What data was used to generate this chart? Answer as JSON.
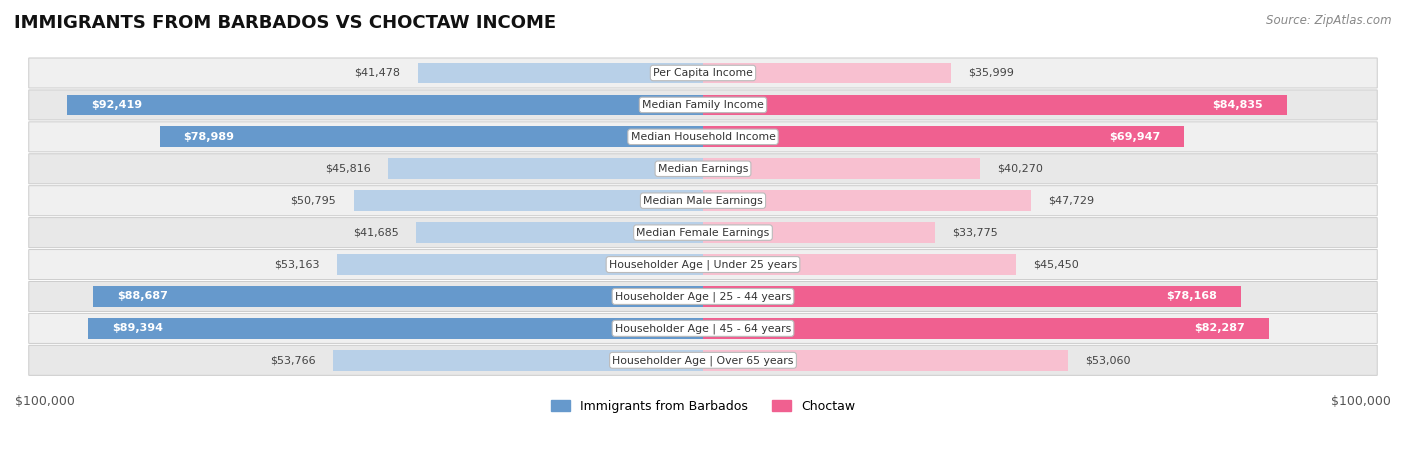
{
  "title": "IMMIGRANTS FROM BARBADOS VS CHOCTAW INCOME",
  "source": "Source: ZipAtlas.com",
  "categories": [
    "Per Capita Income",
    "Median Family Income",
    "Median Household Income",
    "Median Earnings",
    "Median Male Earnings",
    "Median Female Earnings",
    "Householder Age | Under 25 years",
    "Householder Age | 25 - 44 years",
    "Householder Age | 45 - 64 years",
    "Householder Age | Over 65 years"
  ],
  "barbados_values": [
    41478,
    92419,
    78989,
    45816,
    50795,
    41685,
    53163,
    88687,
    89394,
    53766
  ],
  "choctaw_values": [
    35999,
    84835,
    69947,
    40270,
    47729,
    33775,
    45450,
    78168,
    82287,
    53060
  ],
  "barbados_labels": [
    "$41,478",
    "$92,419",
    "$78,989",
    "$45,816",
    "$50,795",
    "$41,685",
    "$53,163",
    "$88,687",
    "$89,394",
    "$53,766"
  ],
  "choctaw_labels": [
    "$35,999",
    "$84,835",
    "$69,947",
    "$40,270",
    "$47,729",
    "$33,775",
    "$45,450",
    "$78,168",
    "$82,287",
    "$53,060"
  ],
  "barbados_color_light": "#b8d0e8",
  "barbados_color_dark": "#6699cc",
  "choctaw_color_light": "#f8c0d0",
  "choctaw_color_dark": "#f06090",
  "max_value": 100000,
  "legend_barbados": "Immigrants from Barbados",
  "legend_choctaw": "Choctaw",
  "title_fontsize": 13,
  "label_fontsize": 8.5,
  "inside_threshold": 60000
}
